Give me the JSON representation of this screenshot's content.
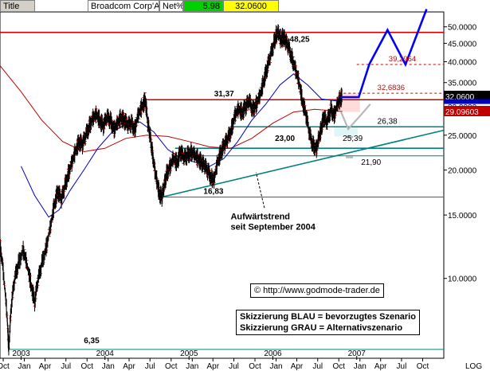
{
  "header": {
    "title_label": "Title",
    "instrument": "Broadcom Corp'A'",
    "netpct_label": "Net%",
    "netpct_value": "5.98",
    "price": "32.0600"
  },
  "colors": {
    "price": "#000000",
    "ma_blue": "#0000c0",
    "ma_red": "#c00000",
    "teal": "#008080",
    "scenario_blue": "#0000ff",
    "scenario_gray": "#b8b8b8",
    "red_line": "#cc0000",
    "netpct_bg": "#00d000",
    "price_bg": "#ffff00"
  },
  "chart_data": {
    "type": "line",
    "scale": "log",
    "ylim": [
      6.0,
      55.0
    ],
    "xlim": [
      "2002-10-01",
      "2008-01-15"
    ],
    "yticks": [
      {
        "value": 50,
        "label": "50.0000"
      },
      {
        "value": 45,
        "label": "45.0000"
      },
      {
        "value": 40,
        "label": "40.0000"
      },
      {
        "value": 35,
        "label": "35.0000"
      },
      {
        "value": 30,
        "label": "30.0000"
      },
      {
        "value": 25,
        "label": "25.0000"
      },
      {
        "value": 20,
        "label": "20.0000"
      },
      {
        "value": 15,
        "label": "15.0000"
      },
      {
        "value": 10,
        "label": "10.0000"
      }
    ],
    "axis_log_label": "LOG",
    "last_price_tag": {
      "value": 32.06,
      "label": "32.0600"
    },
    "secondary_price_tag": {
      "value": 29.09603,
      "label": "29.09603"
    },
    "month_ticks": [
      {
        "date": "2002-10-15",
        "label": "Oct"
      },
      {
        "date": "2003-01-15",
        "label": "Jan"
      },
      {
        "date": "2003-04-15",
        "label": "Apr"
      },
      {
        "date": "2003-07-15",
        "label": "Jul"
      },
      {
        "date": "2003-10-15",
        "label": "Oct"
      },
      {
        "date": "2004-01-15",
        "label": "Jan"
      },
      {
        "date": "2004-04-15",
        "label": "Apr"
      },
      {
        "date": "2004-07-15",
        "label": "Jul"
      },
      {
        "date": "2004-10-15",
        "label": "Oct"
      },
      {
        "date": "2005-01-15",
        "label": "Jan"
      },
      {
        "date": "2005-04-15",
        "label": "Apr"
      },
      {
        "date": "2005-07-15",
        "label": "Jul"
      },
      {
        "date": "2005-10-15",
        "label": "Oct"
      },
      {
        "date": "2006-01-15",
        "label": "Jan"
      },
      {
        "date": "2006-04-15",
        "label": "Apr"
      },
      {
        "date": "2006-07-15",
        "label": "Jul"
      },
      {
        "date": "2006-10-15",
        "label": "Oct"
      },
      {
        "date": "2007-01-15",
        "label": "Jan"
      },
      {
        "date": "2007-04-15",
        "label": "Apr"
      },
      {
        "date": "2007-07-15",
        "label": "Jul"
      },
      {
        "date": "2007-10-15",
        "label": "Oct"
      }
    ],
    "year_labels": [
      {
        "date": "2003-01-01",
        "label": "2003"
      },
      {
        "date": "2004-01-01",
        "label": "2004"
      },
      {
        "date": "2005-01-01",
        "label": "2005"
      },
      {
        "date": "2006-01-01",
        "label": "2006"
      },
      {
        "date": "2007-01-01",
        "label": "2007"
      }
    ],
    "price_points": [
      [
        "2002-10-01",
        12.5
      ],
      [
        "2002-10-15",
        10.5
      ],
      [
        "2002-11-01",
        7.8
      ],
      [
        "2002-11-08",
        6.35
      ],
      [
        "2002-11-20",
        8.5
      ],
      [
        "2002-12-05",
        10.0
      ],
      [
        "2002-12-20",
        11.0
      ],
      [
        "2003-01-10",
        12.0
      ],
      [
        "2003-01-25",
        11.0
      ],
      [
        "2003-02-15",
        9.5
      ],
      [
        "2003-03-01",
        8.6
      ],
      [
        "2003-03-15",
        9.8
      ],
      [
        "2003-04-01",
        11.0
      ],
      [
        "2003-04-20",
        12.2
      ],
      [
        "2003-05-10",
        14.0
      ],
      [
        "2003-05-25",
        16.0
      ],
      [
        "2003-06-10",
        17.5
      ],
      [
        "2003-06-25",
        16.5
      ],
      [
        "2003-07-10",
        18.0
      ],
      [
        "2003-07-25",
        19.5
      ],
      [
        "2003-08-10",
        21.0
      ],
      [
        "2003-08-25",
        22.5
      ],
      [
        "2003-09-10",
        24.0
      ],
      [
        "2003-09-25",
        23.5
      ],
      [
        "2003-10-10",
        25.0
      ],
      [
        "2003-10-25",
        26.5
      ],
      [
        "2003-11-10",
        28.0
      ],
      [
        "2003-11-25",
        28.5
      ],
      [
        "2003-12-10",
        27.5
      ],
      [
        "2003-12-25",
        26.5
      ],
      [
        "2004-01-10",
        28.0
      ],
      [
        "2004-01-25",
        27.5
      ],
      [
        "2004-02-10",
        26.0
      ],
      [
        "2004-02-25",
        27.0
      ],
      [
        "2004-03-10",
        28.0
      ],
      [
        "2004-03-25",
        27.5
      ],
      [
        "2004-04-10",
        26.5
      ],
      [
        "2004-04-25",
        27.0
      ],
      [
        "2004-05-10",
        26.0
      ],
      [
        "2004-05-25",
        28.5
      ],
      [
        "2004-06-10",
        30.0
      ],
      [
        "2004-06-25",
        31.37
      ],
      [
        "2004-07-05",
        27.0
      ],
      [
        "2004-07-15",
        25.0
      ],
      [
        "2004-07-25",
        22.5
      ],
      [
        "2004-08-05",
        20.0
      ],
      [
        "2004-08-15",
        18.5
      ],
      [
        "2004-08-25",
        17.2
      ],
      [
        "2004-09-05",
        16.83
      ],
      [
        "2004-09-15",
        18.0
      ],
      [
        "2004-09-25",
        19.5
      ],
      [
        "2004-10-10",
        20.5
      ],
      [
        "2004-10-25",
        21.5
      ],
      [
        "2004-11-10",
        21.0
      ],
      [
        "2004-11-25",
        22.5
      ],
      [
        "2004-12-10",
        21.5
      ],
      [
        "2004-12-25",
        22.0
      ],
      [
        "2005-01-10",
        22.5
      ],
      [
        "2005-01-25",
        22.0
      ],
      [
        "2005-02-10",
        21.5
      ],
      [
        "2005-02-25",
        21.0
      ],
      [
        "2005-03-10",
        20.5
      ],
      [
        "2005-03-25",
        19.8
      ],
      [
        "2005-04-10",
        19.0
      ],
      [
        "2005-04-20",
        18.8
      ],
      [
        "2005-05-05",
        21.0
      ],
      [
        "2005-05-20",
        22.5
      ],
      [
        "2005-06-05",
        23.5
      ],
      [
        "2005-06-20",
        24.5
      ],
      [
        "2005-07-05",
        26.0
      ],
      [
        "2005-07-20",
        28.5
      ],
      [
        "2005-08-05",
        29.5
      ],
      [
        "2005-08-20",
        29.0
      ],
      [
        "2005-09-05",
        30.0
      ],
      [
        "2005-09-20",
        31.0
      ],
      [
        "2005-10-05",
        29.5
      ],
      [
        "2005-10-20",
        30.5
      ],
      [
        "2005-11-05",
        32.0
      ],
      [
        "2005-11-20",
        35.0
      ],
      [
        "2005-12-05",
        38.0
      ],
      [
        "2005-12-20",
        41.0
      ],
      [
        "2006-01-05",
        45.0
      ],
      [
        "2006-01-15",
        47.5
      ],
      [
        "2006-01-25",
        48.25
      ],
      [
        "2006-02-05",
        46.0
      ],
      [
        "2006-02-15",
        47.0
      ],
      [
        "2006-02-25",
        45.5
      ],
      [
        "2006-03-10",
        44.0
      ],
      [
        "2006-03-25",
        41.0
      ],
      [
        "2006-04-10",
        38.0
      ],
      [
        "2006-04-25",
        35.0
      ],
      [
        "2006-05-10",
        31.0
      ],
      [
        "2006-05-25",
        28.5
      ],
      [
        "2006-06-10",
        25.0
      ],
      [
        "2006-06-25",
        23.5
      ],
      [
        "2006-07-10",
        23.0
      ],
      [
        "2006-07-20",
        24.5
      ],
      [
        "2006-07-30",
        26.0
      ],
      [
        "2006-08-10",
        28.0
      ],
      [
        "2006-08-25",
        27.0
      ],
      [
        "2006-09-10",
        29.5
      ],
      [
        "2006-09-25",
        28.5
      ],
      [
        "2006-10-10",
        30.5
      ],
      [
        "2006-10-20",
        31.5
      ],
      [
        "2006-10-30",
        32.06
      ]
    ],
    "ma_blue_points": [
      [
        "2003-01-01",
        20.5
      ],
      [
        "2003-03-01",
        17.0
      ],
      [
        "2003-05-01",
        14.8
      ],
      [
        "2003-06-15",
        15.5
      ],
      [
        "2003-08-01",
        17.5
      ],
      [
        "2003-10-01",
        20.0
      ],
      [
        "2003-12-01",
        23.0
      ],
      [
        "2004-02-01",
        25.5
      ],
      [
        "2004-04-01",
        26.8
      ],
      [
        "2004-06-01",
        27.2
      ],
      [
        "2004-08-01",
        25.5
      ],
      [
        "2004-10-01",
        22.8
      ],
      [
        "2004-12-01",
        21.5
      ],
      [
        "2005-02-01",
        21.0
      ],
      [
        "2005-04-01",
        20.5
      ],
      [
        "2005-06-01",
        21.5
      ],
      [
        "2005-08-01",
        24.0
      ],
      [
        "2005-10-01",
        27.5
      ],
      [
        "2005-12-01",
        30.5
      ],
      [
        "2006-02-01",
        34.5
      ],
      [
        "2006-04-01",
        37.0
      ],
      [
        "2006-06-01",
        34.5
      ],
      [
        "2006-08-01",
        31.5
      ],
      [
        "2006-10-30",
        31.0
      ]
    ],
    "ma_red_points": [
      [
        "2002-10-01",
        39.0
      ],
      [
        "2003-01-01",
        33.0
      ],
      [
        "2003-04-01",
        27.5
      ],
      [
        "2003-07-01",
        24.0
      ],
      [
        "2003-10-01",
        22.5
      ],
      [
        "2004-01-01",
        23.0
      ],
      [
        "2004-04-01",
        24.5
      ],
      [
        "2004-07-01",
        25.0
      ],
      [
        "2004-10-01",
        24.8
      ],
      [
        "2005-01-01",
        24.0
      ],
      [
        "2005-04-01",
        23.2
      ],
      [
        "2005-07-01",
        23.0
      ],
      [
        "2005-10-01",
        24.5
      ],
      [
        "2006-01-01",
        27.0
      ],
      [
        "2006-04-01",
        29.0
      ],
      [
        "2006-07-01",
        29.5
      ],
      [
        "2006-10-30",
        29.1
      ]
    ],
    "horizontal_lines": [
      {
        "name": "top-red-line",
        "value": 48.25,
        "color": "#cc0000",
        "width": 1.6,
        "dash": false,
        "from": "2002-10-01",
        "to": "2008-01-15"
      },
      {
        "name": "resistance-red-line",
        "value": 31.37,
        "color": "#cc0000",
        "width": 1.6,
        "dash": false,
        "from": "2004-06-25",
        "to": "2008-01-15"
      },
      {
        "name": "target-dash-line-39",
        "value": 39.2964,
        "color": "#cc0000",
        "width": 1,
        "dash": true,
        "from": "2007-01-01",
        "to": "2008-01-15"
      },
      {
        "name": "target-dash-line-32",
        "value": 32.6836,
        "color": "#cc0000",
        "width": 1,
        "dash": true,
        "from": "2006-10-15",
        "to": "2008-01-15"
      },
      {
        "name": "support-line-26",
        "value": 26.38,
        "color": "#008080",
        "width": 1.4,
        "dash": false,
        "from": "2005-07-10",
        "to": "2008-01-15"
      },
      {
        "name": "support-line-23",
        "value": 23.0,
        "color": "#008080",
        "width": 1.6,
        "dash": false,
        "from": "2004-11-01",
        "to": "2008-01-15"
      },
      {
        "name": "support-line-21",
        "value": 21.9,
        "color": "#008080",
        "width": 1,
        "dash": false,
        "from": "2004-11-01",
        "to": "2008-01-15"
      },
      {
        "name": "support-line-16",
        "value": 16.83,
        "color": "#008080",
        "width": 1,
        "dash": false,
        "from": "2004-09-05",
        "to": "2008-01-15"
      },
      {
        "name": "bottom-line-6",
        "value": 6.35,
        "color": "#008080",
        "width": 1,
        "dash": false,
        "from": "2002-11-08",
        "to": "2008-01-15"
      }
    ],
    "trendline": {
      "from": [
        "2004-09-05",
        16.83
      ],
      "to": [
        "2008-01-15",
        25.8
      ],
      "color": "#008080"
    },
    "scenario_blue": [
      [
        "2006-10-20",
        31.9
      ],
      [
        "2007-01-10",
        31.9
      ],
      [
        "2007-02-25",
        39.4
      ],
      [
        "2007-05-15",
        49.0
      ],
      [
        "2007-08-01",
        39.3
      ],
      [
        "2007-11-01",
        56.0
      ]
    ],
    "scenario_gray": [
      [
        "2006-10-25",
        29.0
      ],
      [
        "2006-11-25",
        26.0
      ],
      [
        "2007-01-20",
        28.5
      ],
      [
        "2007-03-01",
        30.5
      ]
    ],
    "scenario_gray_marks": [
      {
        "date": "2006-11-25",
        "value": 24.7
      },
      {
        "date": "2006-11-25",
        "value": 21.7
      }
    ],
    "value_labels": [
      {
        "text": "48,25",
        "date": "2006-03-15",
        "value": 48.25
      },
      {
        "text": "39,2964",
        "date": "2007-05-20",
        "value": 39.2964
      },
      {
        "text": "32,6836",
        "date": "2007-04-01",
        "value": 32.6836
      },
      {
        "text": "31,37",
        "date": "2005-04-20",
        "value": 31.37
      },
      {
        "text": "26,38",
        "date": "2007-04-01",
        "value": 26.38
      },
      {
        "text": "25,39",
        "date": "2006-11-01",
        "value": 25.39
      },
      {
        "text": "23,00",
        "date": "2006-01-10",
        "value": 23.0
      },
      {
        "text": "21,90",
        "date": "2007-01-20",
        "value": 21.9
      },
      {
        "text": "16,83",
        "date": "2005-03-05",
        "value": 16.83
      },
      {
        "text": "6,35",
        "date": "2003-10-01",
        "value": 6.35
      }
    ],
    "trend_annotation": {
      "line1": "Aufwärtstrend",
      "line2": "seit September 2004",
      "arrow_from": [
        "2005-11-25",
        15.7
      ],
      "arrow_to": [
        "2005-10-20",
        19.7
      ]
    },
    "copyright": "© http://www.godmode-trader.de",
    "legend_box": {
      "line1": "Skizzierung BLAU = bevorzugtes Szenario",
      "line2": "Skizzierung GRAU = Alternativszenario"
    }
  }
}
